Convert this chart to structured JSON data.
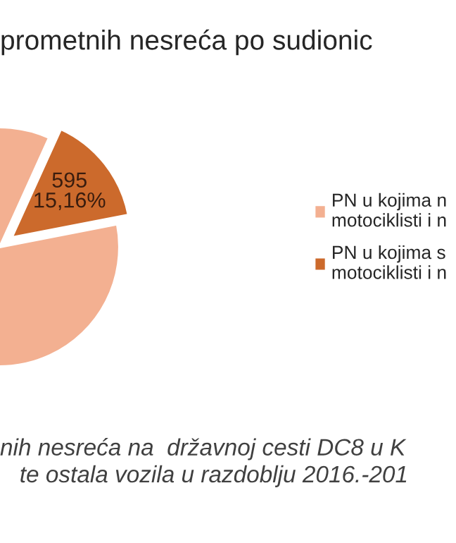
{
  "chart_data": {
    "type": "pie",
    "title": "prometnih nesreća po sudionic",
    "categories": [
      "PN u kojima n\nmotociklisti i n",
      "PN u kojima s\nmotociklisti i n"
    ],
    "values": [
      84.84,
      15.16
    ],
    "colors": [
      "#f3b091",
      "#cc6a2c"
    ],
    "value_labels": [
      null,
      "595\n15,16%"
    ],
    "legend": "right",
    "annotations": [
      "nih nesreća na  državnoj cesti DC8 u K\n   te ostala vozila u razdoblju 2016.-201"
    ]
  }
}
